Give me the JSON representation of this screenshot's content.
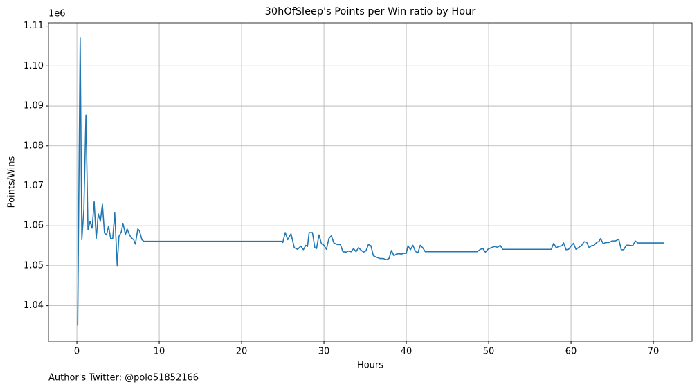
{
  "chart_data": {
    "type": "line",
    "title": "30hOfSleep's Points per Win ratio by Hour",
    "x_label": "Hours",
    "y_label": "Points/Wins",
    "y_offset_label": "1e6",
    "footnote": "Author's Twitter: @polo51852166",
    "grid": true,
    "xlim": [
      -3.45,
      74.7
    ],
    "ylim": [
      1.0311,
      1.1108
    ],
    "xticks": [
      0,
      10,
      20,
      30,
      40,
      50,
      60,
      70
    ],
    "yticks": [
      1.04,
      1.05,
      1.06,
      1.07,
      1.08,
      1.09,
      {
        "value": 1.1,
        "label": "1.10"
      },
      1.11
    ],
    "series": [
      {
        "name": "Points/Wins",
        "color": "#1f77b4",
        "x": [
          0.1,
          0.4,
          0.6,
          0.85,
          1.1,
          1.35,
          1.6,
          1.85,
          2.1,
          2.35,
          2.6,
          2.85,
          3.1,
          3.35,
          3.6,
          3.85,
          4.1,
          4.35,
          4.6,
          4.9,
          5.1,
          5.4,
          5.6,
          5.9,
          6.1,
          6.4,
          6.6,
          6.9,
          7.1,
          7.4,
          7.6,
          7.9,
          8.15,
          24.9,
          25.0,
          25.3,
          25.6,
          26.0,
          26.4,
          26.8,
          27.2,
          27.5,
          27.8,
          28.0,
          28.2,
          28.6,
          28.9,
          29.1,
          29.4,
          29.7,
          30.0,
          30.3,
          30.6,
          30.9,
          31.2,
          31.6,
          32.0,
          32.3,
          32.7,
          33.0,
          33.3,
          33.6,
          33.9,
          34.2,
          34.5,
          34.8,
          35.1,
          35.4,
          35.7,
          36.0,
          36.4,
          36.8,
          37.2,
          37.6,
          37.9,
          38.2,
          38.5,
          38.8,
          39.1,
          39.4,
          39.7,
          40.0,
          40.2,
          40.5,
          40.8,
          41.1,
          41.4,
          41.7,
          42.0,
          42.3,
          48.6,
          49.0,
          49.3,
          49.6,
          49.9,
          50.3,
          50.7,
          51.1,
          51.4,
          51.7,
          57.6,
          57.9,
          58.2,
          58.5,
          58.9,
          59.1,
          59.4,
          59.7,
          60.0,
          60.3,
          60.6,
          60.9,
          61.3,
          61.6,
          61.9,
          62.2,
          62.5,
          62.8,
          63.1,
          63.4,
          63.6,
          63.9,
          64.2,
          64.6,
          65.0,
          65.4,
          65.8,
          66.1,
          66.4,
          66.7,
          67.0,
          67.5,
          67.8,
          68.1,
          71.3
        ],
        "values": [
          1.035,
          1.107,
          1.0565,
          1.0642,
          1.0877,
          1.059,
          1.0611,
          1.0594,
          1.066,
          1.0568,
          1.063,
          1.0611,
          1.0654,
          1.0582,
          1.0577,
          1.0599,
          1.0568,
          1.0568,
          1.0632,
          1.0499,
          1.0573,
          1.0585,
          1.0606,
          1.0578,
          1.0592,
          1.0577,
          1.057,
          1.0565,
          1.0554,
          1.0592,
          1.0587,
          1.0565,
          1.0561,
          1.0561,
          1.0558,
          1.0583,
          1.0565,
          1.058,
          1.0545,
          1.0541,
          1.0549,
          1.054,
          1.0551,
          1.0548,
          1.0583,
          1.0583,
          1.0545,
          1.0543,
          1.0577,
          1.0555,
          1.0551,
          1.0541,
          1.0568,
          1.0575,
          1.0557,
          1.0553,
          1.0553,
          1.0535,
          1.0534,
          1.0537,
          1.0535,
          1.0543,
          1.0535,
          1.0545,
          1.0539,
          1.0534,
          1.0537,
          1.0553,
          1.055,
          1.0525,
          1.0521,
          1.0518,
          1.0518,
          1.0515,
          1.0518,
          1.0538,
          1.0525,
          1.0529,
          1.053,
          1.0529,
          1.0531,
          1.0531,
          1.055,
          1.054,
          1.0551,
          1.0536,
          1.0532,
          1.0551,
          1.0545,
          1.0535,
          1.0535,
          1.0541,
          1.0543,
          1.0534,
          1.0541,
          1.0545,
          1.0548,
          1.0546,
          1.0551,
          1.0541,
          1.0541,
          1.0556,
          1.0545,
          1.0548,
          1.055,
          1.0557,
          1.054,
          1.0541,
          1.0549,
          1.0556,
          1.0541,
          1.0545,
          1.0551,
          1.056,
          1.0559,
          1.0545,
          1.055,
          1.0551,
          1.0558,
          1.0561,
          1.0568,
          1.0555,
          1.0558,
          1.0558,
          1.0562,
          1.0562,
          1.0566,
          1.054,
          1.054,
          1.0551,
          1.0551,
          1.055,
          1.0562,
          1.0557,
          1.0557
        ]
      }
    ]
  }
}
